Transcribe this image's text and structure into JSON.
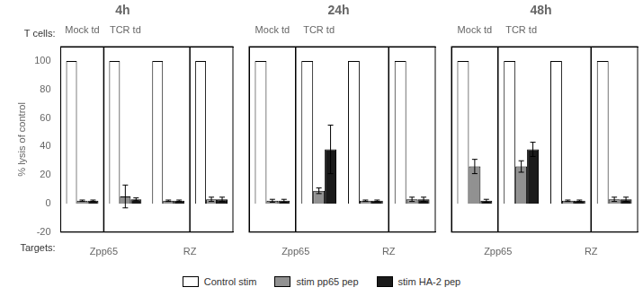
{
  "chart_data": [
    {
      "type": "bar",
      "title": "4h",
      "categories": [
        "Mock td",
        "TCR td",
        null,
        null
      ],
      "groups": [
        "Zpp65",
        "RZ"
      ],
      "annotations": [
        "T cells:",
        "Targets:"
      ],
      "series": [
        {
          "name": "Control stim",
          "color": "#ffffff",
          "values": [
            100,
            100,
            100,
            100
          ],
          "errors": [
            0,
            0,
            0,
            0
          ]
        },
        {
          "name": "stim pp65 pep",
          "color": "#919191",
          "values": [
            2,
            5,
            2,
            3
          ],
          "errors": [
            0.5,
            8,
            0.5,
            1.5
          ]
        },
        {
          "name": "stim HA-2 pep",
          "color": "#1a1a1a",
          "values": [
            2,
            3,
            2,
            3
          ],
          "errors": [
            0.5,
            1,
            0.5,
            1.5
          ]
        }
      ],
      "ylabel": "% lysis of control",
      "ylim": [
        -20,
        110
      ],
      "yticks": [
        -20,
        0,
        20,
        40,
        60,
        80,
        100
      ],
      "grid": false,
      "legend": "bottom"
    },
    {
      "type": "bar",
      "title": "24h",
      "categories": [
        "Mock td",
        "TCR td",
        null,
        null
      ],
      "groups": [
        "Zpp65",
        "RZ"
      ],
      "series": [
        {
          "name": "Control stim",
          "color": "#ffffff",
          "values": [
            100,
            100,
            100,
            100
          ],
          "errors": [
            0,
            0,
            0,
            0
          ]
        },
        {
          "name": "stim pp65 pep",
          "color": "#919191",
          "values": [
            2,
            9,
            2,
            3
          ],
          "errors": [
            1,
            2,
            0.5,
            1.5
          ]
        },
        {
          "name": "stim HA-2 pep",
          "color": "#1a1a1a",
          "values": [
            2,
            38,
            2,
            3
          ],
          "errors": [
            1,
            17,
            0.5,
            1.5
          ]
        }
      ],
      "ylim": [
        -20,
        110
      ],
      "yticks": [
        -20,
        0,
        20,
        40,
        60,
        80,
        100
      ],
      "grid": false,
      "legend": "bottom",
      "tick_labels": "x"
    },
    {
      "type": "bar",
      "title": "48h",
      "categories": [
        "Mock td",
        "TCR td",
        null,
        null
      ],
      "groups": [
        "Zpp65",
        "RZ"
      ],
      "series": [
        {
          "name": "Control stim",
          "color": "#ffffff",
          "values": [
            100,
            100,
            100,
            100
          ],
          "errors": [
            0,
            0,
            0,
            0
          ]
        },
        {
          "name": "stim pp65 pep",
          "color": "#919191",
          "values": [
            26,
            26,
            2,
            3
          ],
          "errors": [
            5,
            4,
            0.5,
            1.5
          ]
        },
        {
          "name": "stim HA-2 pep",
          "color": "#1a1a1a",
          "values": [
            2,
            38,
            2,
            3
          ],
          "errors": [
            1,
            5,
            0.5,
            1.5
          ]
        }
      ],
      "ylim": [
        -20,
        110
      ],
      "yticks": [
        -20,
        0,
        20,
        40,
        60,
        80,
        100
      ],
      "grid": false,
      "legend": "bottom",
      "tick_labels": "x"
    }
  ]
}
